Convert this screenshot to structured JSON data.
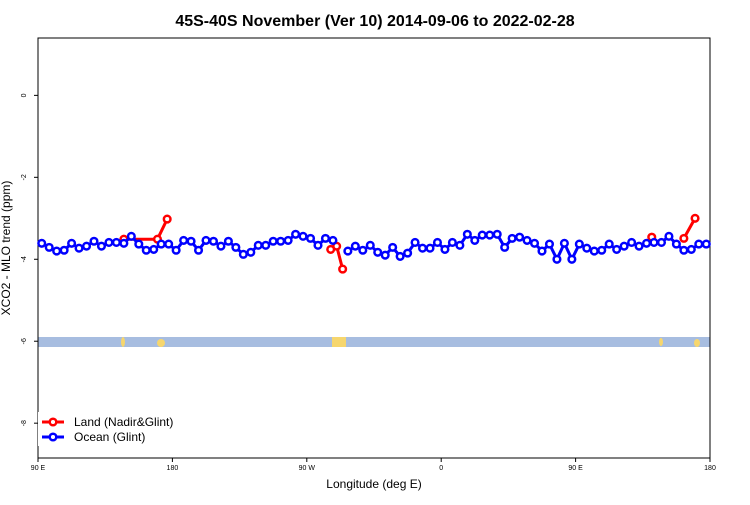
{
  "chart_data": {
    "type": "line",
    "title": "45S-40S November (Ver 10)   2014-09-06 to 2022-02-28",
    "x_label": "Longitude (deg E)",
    "y_label": "XCO2 - MLO trend (ppm)",
    "xlim": [
      90,
      540
    ],
    "ylim": [
      -8.85,
      1.4
    ],
    "xticks": [
      {
        "value": 90,
        "label": "90 E"
      },
      180,
      {
        "value": 270,
        "label": "90 W"
      },
      {
        "value": 360,
        "label": "0"
      },
      {
        "value": 450,
        "label": "90 E"
      },
      {
        "value": 540,
        "label": "180"
      }
    ],
    "yticks": [
      0,
      -2,
      -4,
      -6,
      -8
    ],
    "legend": "bottom-left",
    "series": [
      {
        "name": "Land (Nadir&Glint)",
        "color": "#ff0000",
        "x": [
          147.5,
          170,
          176.5,
          230,
          286,
          290,
          294,
          400,
          501,
          510,
          522.5,
          530
        ],
        "values": [
          -3.51,
          -3.51,
          -3.02,
          null,
          -3.76,
          -3.68,
          -4.24,
          null,
          -3.46,
          null,
          -3.49,
          -3.0
        ]
      },
      {
        "name": "Ocean (Glint)",
        "color": "#0000ff",
        "x": [
          92.5,
          97.5,
          102.5,
          107.5,
          112.5,
          117.5,
          122.5,
          127.5,
          132.5,
          137.5,
          142.5,
          147.5,
          152.5,
          157.5,
          162.5,
          167.5,
          172.5,
          177.5,
          182.5,
          187.5,
          192.5,
          197.5,
          202.5,
          207.5,
          212.5,
          217.5,
          222.5,
          227.5,
          232.5,
          237.5,
          242.5,
          247.5,
          252.5,
          257.5,
          262.5,
          267.5,
          272.5,
          277.5,
          282.5,
          287.5,
          292.5,
          297.5,
          302.5,
          307.5,
          312.5,
          317.5,
          322.5,
          327.5,
          332.5,
          337.5,
          342.5,
          347.5,
          352.5,
          357.5,
          362.5,
          367.5,
          372.5,
          377.5,
          382.5,
          387.5,
          392.5,
          397.5,
          402.5,
          407.5,
          412.5,
          417.5,
          422.5,
          427.5,
          432.5,
          437.5,
          442.5,
          447.5,
          452.5,
          457.5,
          462.5,
          467.5,
          472.5,
          477.5,
          482.5,
          487.5,
          492.5,
          497.5,
          502.5,
          507.5,
          512.5,
          517.5,
          522.5,
          527.5,
          532.5,
          537.5
        ],
        "values": [
          -3.61,
          -3.71,
          -3.8,
          -3.78,
          -3.61,
          -3.73,
          -3.68,
          -3.56,
          -3.68,
          -3.59,
          -3.59,
          -3.61,
          -3.44,
          -3.63,
          -3.78,
          -3.76,
          -3.63,
          -3.63,
          -3.78,
          -3.54,
          -3.56,
          -3.78,
          -3.54,
          -3.56,
          -3.68,
          -3.56,
          -3.71,
          -3.88,
          -3.83,
          -3.66,
          -3.66,
          -3.56,
          -3.56,
          -3.54,
          -3.39,
          -3.44,
          -3.49,
          -3.66,
          -3.49,
          -3.54,
          null,
          -3.8,
          -3.68,
          -3.78,
          -3.66,
          -3.83,
          -3.9,
          -3.71,
          -3.93,
          -3.85,
          -3.59,
          -3.73,
          -3.73,
          -3.59,
          -3.76,
          -3.59,
          -3.66,
          -3.39,
          -3.54,
          -3.41,
          -3.41,
          -3.39,
          -3.71,
          -3.49,
          -3.46,
          -3.54,
          -3.61,
          -3.8,
          -3.63,
          -4.0,
          -3.61,
          -4.0,
          -3.63,
          -3.73,
          -3.8,
          -3.78,
          -3.63,
          -3.76,
          -3.68,
          -3.59,
          -3.68,
          -3.61,
          -3.59,
          -3.59,
          -3.44,
          -3.63,
          -3.78,
          -3.76,
          -3.63,
          -3.63
        ]
      }
    ]
  }
}
